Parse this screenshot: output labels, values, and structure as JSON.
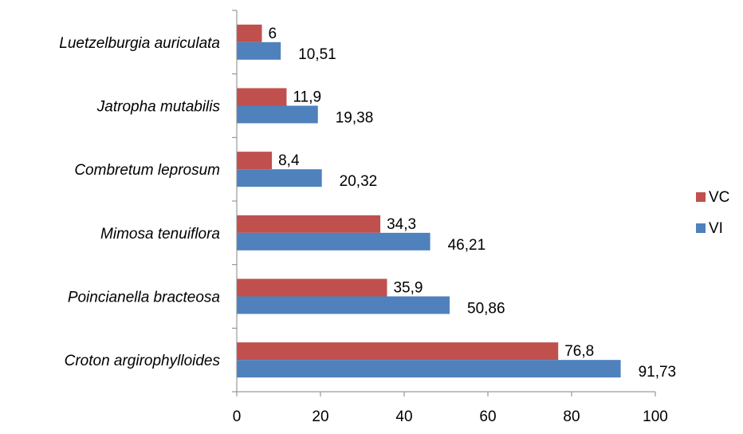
{
  "chart_data": {
    "type": "bar",
    "orientation": "horizontal",
    "title": "",
    "xlabel": "",
    "ylabel": "",
    "categories": [
      "Luetzelburgia auriculata",
      "Jatropha mutabilis",
      "Combretum leprosum",
      "Mimosa tenuiflora",
      "Poincianella bracteosa",
      "Croton argirophylloides"
    ],
    "series": [
      {
        "name": "VC",
        "color": "#C0504D",
        "values": [
          6,
          11.9,
          8.4,
          34.3,
          35.9,
          76.8
        ],
        "labels": [
          "6",
          "11,9",
          "8,4",
          "34,3",
          "35,9",
          "76,8"
        ]
      },
      {
        "name": "VI",
        "color": "#4F81BD",
        "values": [
          10.51,
          19.38,
          20.32,
          46.21,
          50.86,
          91.73
        ],
        "labels": [
          "10,51",
          "19,38",
          "20,32",
          "46,21",
          "50,86",
          "91,73"
        ]
      }
    ],
    "xlim": [
      0,
      100
    ],
    "xticks": [
      0,
      20,
      40,
      60,
      80,
      100
    ],
    "grid": false,
    "legend_position": "right"
  }
}
